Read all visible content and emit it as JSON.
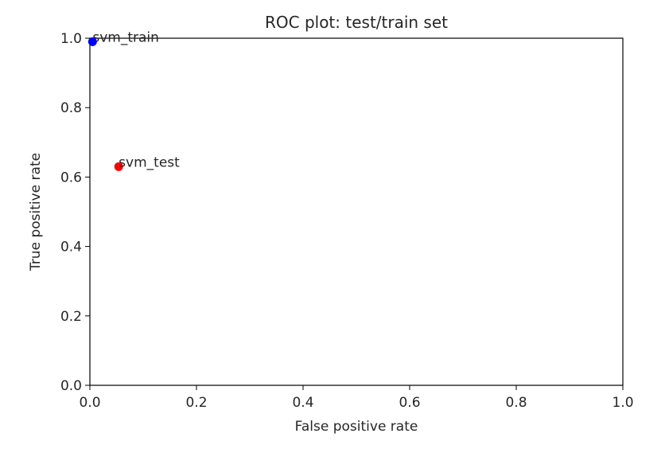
{
  "chart_data": {
    "type": "scatter",
    "title": "ROC plot: test/train set",
    "xlabel": "False positive rate",
    "ylabel": "True positive rate",
    "xlim": [
      0.0,
      1.0
    ],
    "ylim": [
      0.0,
      1.0
    ],
    "grid": false,
    "x_ticks": [
      "0.0",
      "0.2",
      "0.4",
      "0.6",
      "0.8",
      "1.0"
    ],
    "y_ticks": [
      "0.0",
      "0.2",
      "0.4",
      "0.6",
      "0.8",
      "1.0"
    ],
    "points": [
      {
        "label": "svm_train",
        "x": 0.005,
        "y": 0.99,
        "color": "#0000ff"
      },
      {
        "label": "svm_test",
        "x": 0.054,
        "y": 0.63,
        "color": "#ff0000"
      }
    ]
  }
}
